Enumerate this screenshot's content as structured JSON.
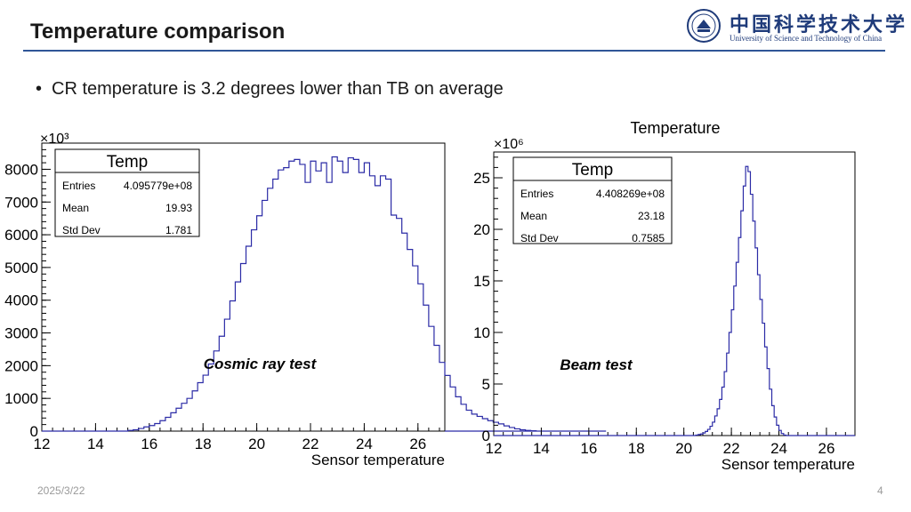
{
  "slide": {
    "title": "Temperature comparison",
    "bullet": "CR temperature is 3.2 degrees lower than TB on average",
    "date": "2025/3/22",
    "page": "4"
  },
  "logo": {
    "cn": "中国科学技术大学",
    "en": "University of Science and Technology of China"
  },
  "colors": {
    "accent": "#2f5597",
    "histogram": "#2b2ba6"
  },
  "chart_data": [
    {
      "type": "histogram",
      "title": "",
      "exponent_label": "×10³",
      "xlabel": "Sensor temperature",
      "ylabel": "",
      "xlim": [
        12,
        27
      ],
      "ylim": [
        0,
        8800
      ],
      "x_ticks": [
        "12",
        "14",
        "16",
        "18",
        "20",
        "22",
        "24",
        "26"
      ],
      "y_ticks": [
        "0",
        "1000",
        "2000",
        "3000",
        "4000",
        "5000",
        "6000",
        "7000",
        "8000"
      ],
      "annotation": "Cosmic ray test",
      "stats": {
        "name": "Temp",
        "rows": [
          {
            "label": "Entries",
            "value": "4.095779e+08"
          },
          {
            "label": "Mean",
            "value": "19.93"
          },
          {
            "label": "Std Dev",
            "value": "1.781"
          }
        ]
      },
      "bin_width": 0.2,
      "bin_start": 12.0,
      "values": [
        0,
        0,
        0,
        0,
        0,
        0,
        0,
        0,
        0,
        0,
        0,
        0,
        0,
        0,
        0,
        0,
        20,
        40,
        80,
        130,
        170,
        230,
        320,
        420,
        560,
        700,
        850,
        1000,
        1230,
        1480,
        1710,
        2050,
        2450,
        2900,
        3420,
        3980,
        4560,
        5120,
        5650,
        6150,
        6580,
        7050,
        7420,
        7700,
        7980,
        8050,
        8250,
        8300,
        8150,
        7600,
        8250,
        7950,
        8200,
        7600,
        8380,
        8250,
        7900,
        8350,
        8300,
        7900,
        8200,
        7800,
        7500,
        7800,
        7700,
        6600,
        6500,
        6050,
        5550,
        5050,
        4500,
        3850,
        3200,
        2620,
        2100,
        1700,
        1350,
        1050,
        820,
        640,
        520,
        450,
        380,
        320,
        270,
        220,
        160,
        110,
        70,
        40,
        20,
        10,
        0,
        0,
        0,
        0,
        0,
        0,
        0,
        0,
        0,
        0,
        0,
        0,
        0
      ]
    },
    {
      "type": "histogram",
      "title": "Temperature",
      "exponent_label": "×10⁶",
      "xlabel": "Sensor temperature",
      "ylabel": "",
      "xlim": [
        12,
        27.2
      ],
      "ylim": [
        0,
        27.5
      ],
      "x_ticks": [
        "12",
        "14",
        "16",
        "18",
        "20",
        "22",
        "24",
        "26"
      ],
      "y_ticks": [
        "0",
        "5",
        "10",
        "15",
        "20",
        "25"
      ],
      "annotation": "Beam test",
      "stats": {
        "name": "Temp",
        "rows": [
          {
            "label": "Entries",
            "value": "4.408269e+08"
          },
          {
            "label": "Mean",
            "value": "23.18"
          },
          {
            "label": "Std Dev",
            "value": "0.7585"
          }
        ]
      },
      "bin_width": 0.1,
      "bin_start": 20.5,
      "values": [
        0.05,
        0.1,
        0.15,
        0.25,
        0.4,
        0.6,
        0.9,
        1.3,
        1.9,
        2.6,
        3.5,
        4.7,
        6.2,
        8.0,
        10.0,
        12.2,
        14.5,
        16.8,
        19.2,
        21.8,
        24.2,
        26.1,
        25.6,
        23.4,
        20.8,
        18.2,
        15.6,
        13.2,
        10.9,
        8.6,
        6.5,
        4.5,
        2.9,
        1.8,
        1.0,
        0.5,
        0.2,
        0.05,
        0
      ]
    }
  ]
}
